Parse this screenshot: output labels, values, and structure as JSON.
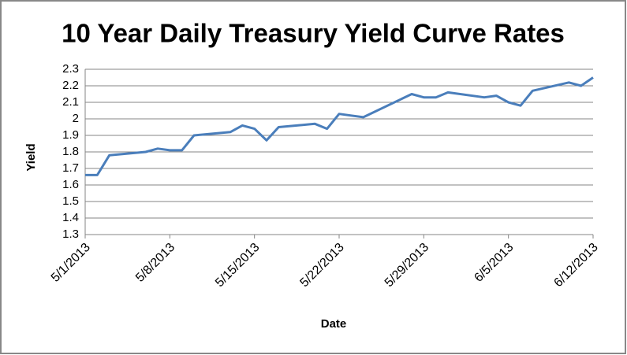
{
  "chart_data": {
    "type": "line",
    "title": "10 Year Daily Treasury Yield Curve Rates",
    "x_label": "Date",
    "y_label": "Yield",
    "x": [
      "5/1/2013",
      "5/2/2013",
      "5/3/2013",
      "5/6/2013",
      "5/7/2013",
      "5/8/2013",
      "5/9/2013",
      "5/10/2013",
      "5/13/2013",
      "5/14/2013",
      "5/15/2013",
      "5/16/2013",
      "5/17/2013",
      "5/20/2013",
      "5/21/2013",
      "5/22/2013",
      "5/23/2013",
      "5/24/2013",
      "5/28/2013",
      "5/29/2013",
      "5/30/2013",
      "5/31/2013",
      "6/3/2013",
      "6/4/2013",
      "6/5/2013",
      "6/6/2013",
      "6/7/2013",
      "6/10/2013",
      "6/11/2013",
      "6/12/2013"
    ],
    "series": [
      {
        "name": "Yield",
        "color": "#4a7ebb",
        "values": [
          1.66,
          1.66,
          1.78,
          1.8,
          1.82,
          1.81,
          1.81,
          1.9,
          1.92,
          1.96,
          1.94,
          1.87,
          1.95,
          1.97,
          1.94,
          2.03,
          2.02,
          2.01,
          2.15,
          2.13,
          2.13,
          2.16,
          2.13,
          2.14,
          2.1,
          2.08,
          2.17,
          2.22,
          2.2,
          2.25
        ]
      }
    ],
    "xlim": [
      "5/1/2013",
      "6/12/2013"
    ],
    "xticks": [
      "5/1/2013",
      "5/8/2013",
      "5/15/2013",
      "5/22/2013",
      "5/29/2013",
      "6/5/2013",
      "6/12/2013"
    ],
    "ylim": [
      1.3,
      2.3
    ],
    "yticks": [
      1.3,
      1.4,
      1.5,
      1.6,
      1.7,
      1.8,
      1.9,
      2,
      2.1,
      2.2,
      2.3
    ],
    "grid": true
  }
}
